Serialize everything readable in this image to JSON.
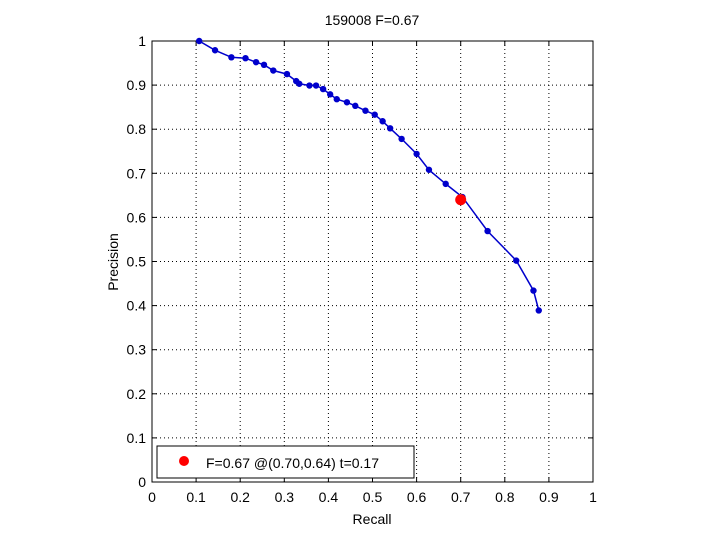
{
  "chart_data": {
    "type": "line",
    "title": "159008 F=0.67",
    "xlabel": "Recall",
    "ylabel": "Precision",
    "xlim": [
      0,
      1
    ],
    "ylim": [
      0,
      1
    ],
    "grid": true,
    "legend_position": "bottom-left",
    "x_ticks": [
      "0",
      "0.1",
      "0.2",
      "0.3",
      "0.4",
      "0.5",
      "0.6",
      "0.7",
      "0.8",
      "0.9",
      "1"
    ],
    "y_ticks": [
      "0",
      "0.1",
      "0.2",
      "0.3",
      "0.4",
      "0.5",
      "0.6",
      "0.7",
      "0.8",
      "0.9",
      "1"
    ],
    "series": [
      {
        "color": "#0000cc",
        "points": [
          [
            0.107,
            1.0
          ],
          [
            0.143,
            0.979
          ],
          [
            0.18,
            0.963
          ],
          [
            0.212,
            0.961
          ],
          [
            0.236,
            0.952
          ],
          [
            0.254,
            0.946
          ],
          [
            0.275,
            0.933
          ],
          [
            0.306,
            0.925
          ],
          [
            0.327,
            0.909
          ],
          [
            0.334,
            0.903
          ],
          [
            0.357,
            0.899
          ],
          [
            0.372,
            0.899
          ],
          [
            0.388,
            0.891
          ],
          [
            0.404,
            0.879
          ],
          [
            0.419,
            0.868
          ],
          [
            0.442,
            0.861
          ],
          [
            0.461,
            0.853
          ],
          [
            0.484,
            0.842
          ],
          [
            0.505,
            0.833
          ],
          [
            0.523,
            0.818
          ],
          [
            0.54,
            0.802
          ],
          [
            0.566,
            0.778
          ],
          [
            0.6,
            0.744
          ],
          [
            0.628,
            0.708
          ],
          [
            0.666,
            0.676
          ],
          [
            0.704,
            0.646
          ],
          [
            0.761,
            0.569
          ],
          [
            0.826,
            0.502
          ],
          [
            0.865,
            0.434
          ],
          [
            0.877,
            0.389
          ]
        ]
      }
    ],
    "highlight": {
      "color": "#ff0000",
      "x": 0.7,
      "y": 0.64,
      "label": "F=0.67 @(0.70,0.64) t=0.17"
    }
  }
}
